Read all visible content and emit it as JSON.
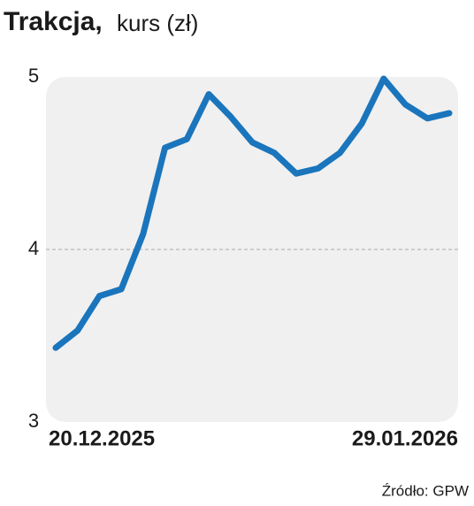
{
  "chart_data": {
    "type": "line",
    "title": "Trakcja,",
    "subtitle": "kurs (zł)",
    "categories": [
      "20.12.2025",
      null,
      null,
      null,
      null,
      null,
      null,
      null,
      null,
      null,
      null,
      null,
      null,
      null,
      null,
      null,
      null,
      null,
      "29.01.2026"
    ],
    "series": [
      {
        "name": "Trakcja",
        "color": "#1a75bc",
        "values": [
          3.43,
          3.53,
          3.73,
          3.77,
          4.09,
          4.59,
          4.64,
          4.9,
          4.77,
          4.62,
          4.56,
          4.44,
          4.47,
          4.56,
          4.73,
          4.99,
          4.84,
          4.76,
          4.79
        ]
      }
    ],
    "ylim": [
      3,
      5
    ],
    "yticks": [
      3,
      4,
      5
    ],
    "grid": true,
    "source": "Źródło: GPW"
  }
}
